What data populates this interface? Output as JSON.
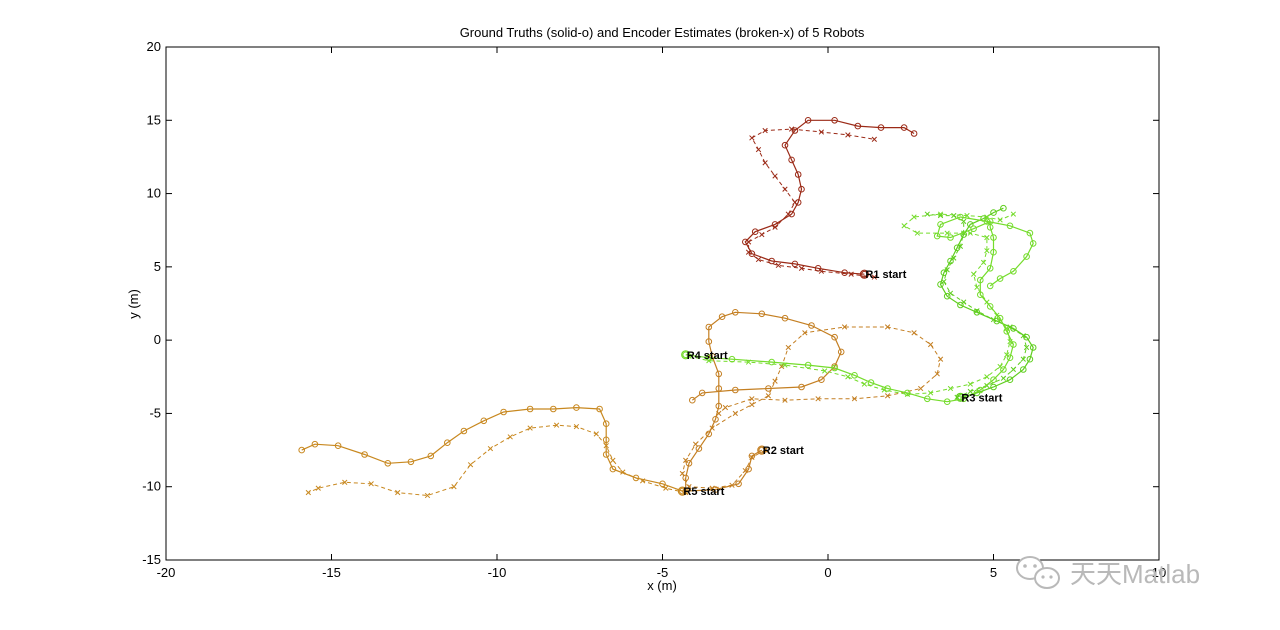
{
  "chart_data": {
    "type": "line",
    "title": "Ground Truths (solid-o) and Encoder Estimates (broken-x) of 5 Robots",
    "xlabel": "x (m)",
    "ylabel": "y (m)",
    "xlim": [
      -20,
      10
    ],
    "ylim": [
      -15,
      20
    ],
    "xticks": [
      -20,
      -15,
      -10,
      -5,
      0,
      5,
      10
    ],
    "yticks": [
      -15,
      -10,
      -5,
      0,
      5,
      10,
      15,
      20
    ],
    "grid": false,
    "series": [
      {
        "robot": "R1",
        "color": "#9b2a17",
        "start_label": "R1 start",
        "start_point": [
          1.1,
          4.5
        ],
        "truth": [
          [
            1.1,
            4.5
          ],
          [
            0.5,
            4.6
          ],
          [
            -0.3,
            4.9
          ],
          [
            -1.0,
            5.2
          ],
          [
            -1.7,
            5.4
          ],
          [
            -2.3,
            5.9
          ],
          [
            -2.5,
            6.7
          ],
          [
            -2.2,
            7.4
          ],
          [
            -1.6,
            7.9
          ],
          [
            -1.1,
            8.6
          ],
          [
            -0.9,
            9.4
          ],
          [
            -0.8,
            10.3
          ],
          [
            -0.9,
            11.3
          ],
          [
            -1.1,
            12.3
          ],
          [
            -1.3,
            13.3
          ],
          [
            -1.0,
            14.3
          ],
          [
            -0.6,
            15.0
          ],
          [
            0.2,
            15.0
          ],
          [
            0.9,
            14.6
          ],
          [
            1.6,
            14.5
          ],
          [
            2.3,
            14.5
          ],
          [
            2.6,
            14.1
          ]
        ],
        "estimate": [
          [
            1.4,
            4.3
          ],
          [
            0.7,
            4.5
          ],
          [
            -0.2,
            4.7
          ],
          [
            -0.8,
            4.9
          ],
          [
            -1.5,
            5.1
          ],
          [
            -2.1,
            5.5
          ],
          [
            -2.4,
            6.0
          ],
          [
            -2.4,
            6.7
          ],
          [
            -2.0,
            7.2
          ],
          [
            -1.6,
            7.7
          ],
          [
            -1.2,
            8.6
          ],
          [
            -1.0,
            9.4
          ],
          [
            -1.3,
            10.3
          ],
          [
            -1.6,
            11.2
          ],
          [
            -1.9,
            12.1
          ],
          [
            -2.1,
            13.0
          ],
          [
            -2.3,
            13.8
          ],
          [
            -1.9,
            14.3
          ],
          [
            -1.1,
            14.4
          ],
          [
            -0.2,
            14.2
          ],
          [
            0.6,
            14.0
          ],
          [
            1.4,
            13.7
          ]
        ]
      },
      {
        "robot": "R2",
        "color": "#c47f22",
        "start_label": "R2 start",
        "start_point": [
          -2.0,
          -7.5
        ],
        "truth": [
          [
            -2.0,
            -7.5
          ],
          [
            -2.3,
            -7.9
          ],
          [
            -2.4,
            -8.8
          ],
          [
            -2.7,
            -9.8
          ],
          [
            -3.4,
            -10.2
          ],
          [
            -4.3,
            -10.3
          ],
          [
            -4.3,
            -9.4
          ],
          [
            -4.2,
            -8.4
          ],
          [
            -3.9,
            -7.4
          ],
          [
            -3.6,
            -6.4
          ],
          [
            -3.4,
            -5.4
          ],
          [
            -3.3,
            -4.5
          ],
          [
            -3.3,
            -3.3
          ],
          [
            -3.3,
            -2.3
          ],
          [
            -3.5,
            -1.1
          ],
          [
            -3.6,
            -0.1
          ],
          [
            -3.6,
            0.9
          ],
          [
            -3.2,
            1.6
          ],
          [
            -2.8,
            1.9
          ],
          [
            -2.0,
            1.8
          ],
          [
            -1.3,
            1.5
          ],
          [
            -0.5,
            1.0
          ],
          [
            0.2,
            0.2
          ],
          [
            0.4,
            -0.8
          ],
          [
            0.2,
            -1.8
          ],
          [
            -0.2,
            -2.7
          ],
          [
            -0.8,
            -3.2
          ],
          [
            -1.8,
            -3.3
          ],
          [
            -2.8,
            -3.4
          ],
          [
            -3.8,
            -3.6
          ],
          [
            -4.1,
            -4.1
          ]
        ],
        "estimate": [
          [
            -1.9,
            -7.5
          ],
          [
            -2.3,
            -8.0
          ],
          [
            -2.5,
            -8.9
          ],
          [
            -2.9,
            -9.9
          ],
          [
            -3.5,
            -10.1
          ],
          [
            -4.2,
            -10.0
          ],
          [
            -4.4,
            -9.1
          ],
          [
            -4.3,
            -8.2
          ],
          [
            -4.0,
            -7.1
          ],
          [
            -3.5,
            -6.0
          ],
          [
            -2.8,
            -5.0
          ],
          [
            -2.3,
            -4.4
          ],
          [
            -1.8,
            -3.8
          ],
          [
            -1.6,
            -2.8
          ],
          [
            -1.4,
            -1.8
          ],
          [
            -1.2,
            -0.5
          ],
          [
            -0.7,
            0.5
          ],
          [
            0.5,
            0.9
          ],
          [
            1.8,
            0.9
          ],
          [
            2.6,
            0.5
          ],
          [
            3.1,
            -0.3
          ],
          [
            3.4,
            -1.3
          ],
          [
            3.3,
            -2.3
          ],
          [
            2.8,
            -3.3
          ],
          [
            1.8,
            -3.8
          ],
          [
            0.8,
            -4.0
          ],
          [
            -0.3,
            -4.0
          ],
          [
            -1.3,
            -4.1
          ],
          [
            -2.3,
            -4.0
          ],
          [
            -3.1,
            -4.6
          ],
          [
            -3.3,
            -5.0
          ]
        ]
      },
      {
        "robot": "R3",
        "color": "#5fce1e",
        "start_label": "R3 start",
        "start_point": [
          4.0,
          -3.9
        ],
        "truth": [
          [
            4.0,
            -3.9
          ],
          [
            4.5,
            -3.6
          ],
          [
            5.0,
            -3.2
          ],
          [
            5.5,
            -2.7
          ],
          [
            5.9,
            -2.0
          ],
          [
            6.1,
            -1.3
          ],
          [
            6.2,
            -0.5
          ],
          [
            6.0,
            0.2
          ],
          [
            5.6,
            0.8
          ],
          [
            5.1,
            1.3
          ],
          [
            4.5,
            1.9
          ],
          [
            4.0,
            2.4
          ],
          [
            3.6,
            3.0
          ],
          [
            3.4,
            3.8
          ],
          [
            3.5,
            4.6
          ],
          [
            3.7,
            5.4
          ],
          [
            3.9,
            6.3
          ],
          [
            4.1,
            7.2
          ],
          [
            4.3,
            7.9
          ],
          [
            4.7,
            8.3
          ],
          [
            5.0,
            8.7
          ],
          [
            5.3,
            9.0
          ]
        ],
        "estimate": [
          [
            3.9,
            -3.9
          ],
          [
            4.3,
            -3.5
          ],
          [
            4.8,
            -3.1
          ],
          [
            5.3,
            -2.6
          ],
          [
            5.6,
            -2.0
          ],
          [
            5.9,
            -1.3
          ],
          [
            6.0,
            -0.5
          ],
          [
            5.9,
            0.3
          ],
          [
            5.5,
            0.9
          ],
          [
            5.0,
            1.4
          ],
          [
            4.5,
            2.0
          ],
          [
            4.1,
            2.6
          ],
          [
            3.7,
            3.2
          ],
          [
            3.5,
            4.0
          ],
          [
            3.6,
            4.8
          ],
          [
            3.8,
            5.6
          ],
          [
            4.0,
            6.4
          ],
          [
            4.1,
            7.3
          ],
          [
            4.1,
            8.1
          ],
          [
            3.8,
            8.5
          ],
          [
            3.4,
            8.5
          ],
          [
            3.0,
            8.6
          ]
        ]
      },
      {
        "robot": "R4",
        "color": "#74dc2b",
        "start_label": "R4 start",
        "start_point": [
          -4.3,
          -1.0
        ],
        "truth": [
          [
            -4.3,
            -1.0
          ],
          [
            -3.6,
            -1.2
          ],
          [
            -2.9,
            -1.3
          ],
          [
            -1.7,
            -1.5
          ],
          [
            -0.6,
            -1.7
          ],
          [
            0.2,
            -1.9
          ],
          [
            0.8,
            -2.4
          ],
          [
            1.3,
            -2.9
          ],
          [
            1.8,
            -3.3
          ],
          [
            2.4,
            -3.6
          ],
          [
            3.0,
            -4.0
          ],
          [
            3.6,
            -4.2
          ],
          [
            4.1,
            -4.0
          ],
          [
            4.6,
            -3.4
          ],
          [
            5.0,
            -2.7
          ],
          [
            5.3,
            -2.0
          ],
          [
            5.5,
            -1.2
          ],
          [
            5.6,
            -0.3
          ],
          [
            5.4,
            0.6
          ],
          [
            5.2,
            1.5
          ],
          [
            4.9,
            2.3
          ],
          [
            4.6,
            3.1
          ],
          [
            4.6,
            4.1
          ],
          [
            4.9,
            4.9
          ],
          [
            5.0,
            6.0
          ],
          [
            5.0,
            7.0
          ],
          [
            4.9,
            7.7
          ],
          [
            4.9,
            8.1
          ],
          [
            4.4,
            7.6
          ],
          [
            3.7,
            7.0
          ],
          [
            3.3,
            7.1
          ],
          [
            3.4,
            7.9
          ],
          [
            4.0,
            8.4
          ],
          [
            4.8,
            8.1
          ],
          [
            5.5,
            7.8
          ],
          [
            6.1,
            7.3
          ],
          [
            6.2,
            6.6
          ],
          [
            6.0,
            5.7
          ],
          [
            5.6,
            4.7
          ],
          [
            5.2,
            4.2
          ],
          [
            4.9,
            3.7
          ]
        ],
        "estimate": [
          [
            -4.2,
            -1.1
          ],
          [
            -3.6,
            -1.4
          ],
          [
            -2.4,
            -1.5
          ],
          [
            -1.3,
            -1.7
          ],
          [
            -0.1,
            -2.1
          ],
          [
            0.6,
            -2.5
          ],
          [
            1.1,
            -3.0
          ],
          [
            1.7,
            -3.4
          ],
          [
            2.4,
            -3.7
          ],
          [
            3.1,
            -3.6
          ],
          [
            3.7,
            -3.3
          ],
          [
            4.3,
            -3.0
          ],
          [
            4.8,
            -2.5
          ],
          [
            5.2,
            -1.8
          ],
          [
            5.4,
            -1.0
          ],
          [
            5.5,
            -0.1
          ],
          [
            5.4,
            0.8
          ],
          [
            5.1,
            1.7
          ],
          [
            4.8,
            2.6
          ],
          [
            4.5,
            3.6
          ],
          [
            4.4,
            4.5
          ],
          [
            4.7,
            5.3
          ],
          [
            4.8,
            6.1
          ],
          [
            4.8,
            7.0
          ],
          [
            4.3,
            7.3
          ],
          [
            3.6,
            7.3
          ],
          [
            2.7,
            7.3
          ],
          [
            2.3,
            7.8
          ],
          [
            2.6,
            8.4
          ],
          [
            3.4,
            8.6
          ],
          [
            4.2,
            8.5
          ],
          [
            4.8,
            8.4
          ],
          [
            5.2,
            8.2
          ],
          [
            5.6,
            8.6
          ]
        ]
      },
      {
        "robot": "R5",
        "color": "#c8881f",
        "start_label": "R5 start",
        "start_point": [
          -4.4,
          -10.3
        ],
        "truth": [
          [
            -4.4,
            -10.3
          ],
          [
            -5.0,
            -9.8
          ],
          [
            -5.8,
            -9.4
          ],
          [
            -6.5,
            -8.8
          ],
          [
            -6.7,
            -7.8
          ],
          [
            -6.7,
            -6.8
          ],
          [
            -6.7,
            -5.7
          ],
          [
            -6.9,
            -4.7
          ],
          [
            -7.6,
            -4.6
          ],
          [
            -8.3,
            -4.7
          ],
          [
            -9.0,
            -4.7
          ],
          [
            -9.8,
            -4.9
          ],
          [
            -10.4,
            -5.5
          ],
          [
            -11.0,
            -6.2
          ],
          [
            -11.5,
            -7.0
          ],
          [
            -12.0,
            -7.9
          ],
          [
            -12.6,
            -8.3
          ],
          [
            -13.3,
            -8.4
          ],
          [
            -14.0,
            -7.8
          ],
          [
            -14.8,
            -7.2
          ],
          [
            -15.5,
            -7.1
          ],
          [
            -15.9,
            -7.5
          ]
        ],
        "estimate": [
          [
            -4.3,
            -10.4
          ],
          [
            -4.9,
            -10.1
          ],
          [
            -5.6,
            -9.6
          ],
          [
            -6.2,
            -9.0
          ],
          [
            -6.5,
            -8.2
          ],
          [
            -6.7,
            -7.2
          ],
          [
            -7.0,
            -6.4
          ],
          [
            -7.6,
            -5.9
          ],
          [
            -8.2,
            -5.8
          ],
          [
            -9.0,
            -6.0
          ],
          [
            -9.6,
            -6.6
          ],
          [
            -10.2,
            -7.4
          ],
          [
            -10.8,
            -8.5
          ],
          [
            -11.3,
            -10.0
          ],
          [
            -12.1,
            -10.6
          ],
          [
            -13.0,
            -10.4
          ],
          [
            -13.8,
            -9.8
          ],
          [
            -14.6,
            -9.7
          ],
          [
            -15.4,
            -10.1
          ],
          [
            -15.7,
            -10.4
          ]
        ]
      }
    ]
  },
  "watermark": {
    "text": "天天Matlab"
  }
}
